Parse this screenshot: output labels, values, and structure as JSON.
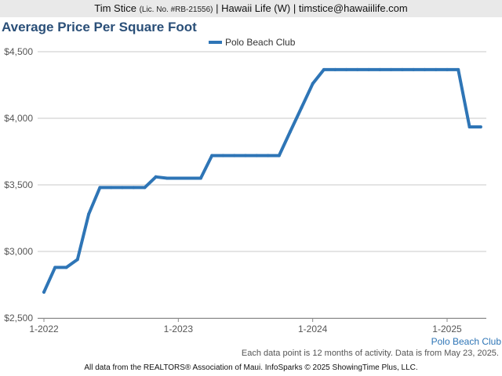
{
  "header": {
    "name": "Tim Stice",
    "license": "(Lic. No. #RB-21556)",
    "company_contact": "| Hawaii Life (W) | timstice@hawaiilife.com"
  },
  "chart_data": {
    "type": "line",
    "title": "Average Price Per Square Foot",
    "xlabel": "",
    "ylabel": "",
    "ylim": [
      2500,
      4500
    ],
    "yticks": [
      2500,
      3000,
      3500,
      4000,
      4500
    ],
    "ytick_labels": [
      "$2,500",
      "$3,000",
      "$3,500",
      "$4,000",
      "$4,500"
    ],
    "xlim": [
      2022.0,
      2025.3
    ],
    "xticks": [
      2022,
      2023,
      2024,
      2025
    ],
    "xtick_labels": [
      "1-2022",
      "1-2023",
      "1-2024",
      "1-2025"
    ],
    "grid": "horizontal",
    "legend": "top-center",
    "series": [
      {
        "name": "Polo Beach Club",
        "color": "#2e75b6",
        "x": [
          2022.0,
          2022.083,
          2022.167,
          2022.25,
          2022.333,
          2022.417,
          2022.5,
          2022.583,
          2022.667,
          2022.75,
          2022.833,
          2022.917,
          2023.0,
          2023.083,
          2023.167,
          2023.25,
          2023.333,
          2023.417,
          2023.5,
          2023.583,
          2023.667,
          2023.75,
          2023.833,
          2023.917,
          2024.0,
          2024.083,
          2024.167,
          2024.25,
          2024.333,
          2024.417,
          2024.5,
          2024.583,
          2024.667,
          2024.75,
          2024.833,
          2024.917,
          2025.0,
          2025.083,
          2025.167,
          2025.25
        ],
        "values": [
          2695,
          2880,
          2880,
          2940,
          3280,
          3480,
          3480,
          3480,
          3480,
          3480,
          3560,
          3550,
          3550,
          3550,
          3550,
          3720,
          3720,
          3720,
          3720,
          3720,
          3720,
          3720,
          3900,
          4080,
          4260,
          4365,
          4365,
          4365,
          4365,
          4365,
          4365,
          4365,
          4365,
          4365,
          4365,
          4365,
          4365,
          4365,
          3935,
          3935
        ]
      }
    ],
    "x_end_label": "Polo Beach Club"
  },
  "footer": {
    "note": "Each data point is 12 months of activity. Data is from May 23, 2025.",
    "source": "All data from the REALTORS® Association of Maui. InfoSparks © 2025 ShowingTime Plus, LLC."
  }
}
